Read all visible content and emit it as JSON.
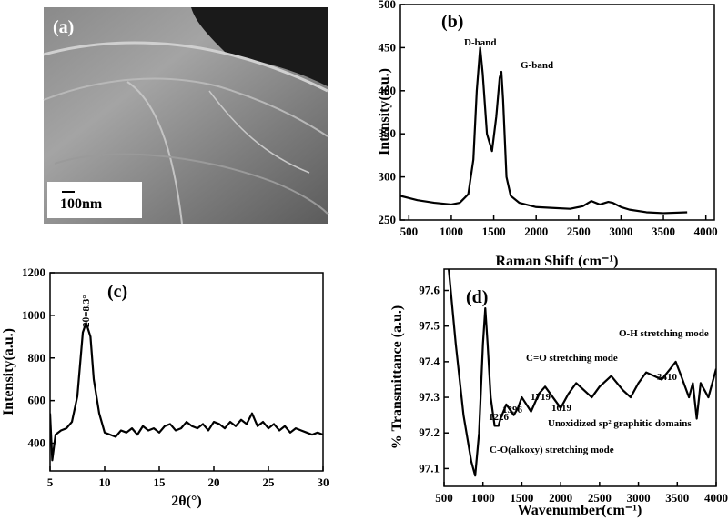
{
  "image_panel": {
    "label": "(a)",
    "scale_bar": "100nm"
  },
  "chart_data": [
    {
      "type": "line",
      "panel_label": "(b)",
      "x_label": "Raman Shift (cm⁻¹)",
      "y_label": "Intensity(a.u.)",
      "color": "#000000",
      "xlim": [
        400,
        4100
      ],
      "ylim": [
        250,
        500
      ],
      "xticks": [
        500,
        1000,
        1500,
        2000,
        2500,
        3000,
        3500,
        4000
      ],
      "yticks": [
        250,
        300,
        350,
        400,
        450,
        500
      ],
      "x": [
        400,
        600,
        800,
        1000,
        1100,
        1200,
        1260,
        1300,
        1340,
        1370,
        1420,
        1480,
        1530,
        1570,
        1590,
        1610,
        1650,
        1700,
        1800,
        2000,
        2200,
        2400,
        2550,
        2650,
        2750,
        2850,
        2900,
        3000,
        3100,
        3300,
        3500,
        3780
      ],
      "values": [
        278,
        273,
        270,
        268,
        270,
        280,
        320,
        400,
        450,
        420,
        350,
        330,
        370,
        415,
        422,
        390,
        300,
        278,
        270,
        265,
        264,
        263,
        266,
        272,
        268,
        271,
        270,
        265,
        262,
        259,
        258,
        259
      ],
      "annotations": [
        "D-band",
        "G-band"
      ]
    },
    {
      "type": "line",
      "panel_label": "(c)",
      "x_label": "2θ(°)",
      "y_label": "Intensity(a.u.)",
      "color": "#000000",
      "xlim": [
        5,
        30
      ],
      "ylim": [
        270,
        1200
      ],
      "xticks": [
        5,
        10,
        15,
        20,
        25,
        30
      ],
      "yticks": [
        400,
        600,
        800,
        1000,
        1200
      ],
      "x": [
        5,
        5.2,
        5.5,
        6,
        6.5,
        7,
        7.5,
        8,
        8.3,
        8.7,
        9,
        9.5,
        10,
        10.5,
        11,
        11.5,
        12,
        12.5,
        13,
        13.5,
        14,
        14.5,
        15,
        15.5,
        16,
        16.5,
        17,
        17.5,
        18,
        18.5,
        19,
        19.5,
        20,
        20.5,
        21,
        21.5,
        22,
        22.5,
        23,
        23.5,
        24,
        24.5,
        25,
        25.5,
        26,
        26.5,
        27,
        27.5,
        28,
        28.5,
        29,
        29.5,
        30
      ],
      "values": [
        540,
        320,
        440,
        460,
        470,
        500,
        620,
        920,
        965,
        900,
        700,
        540,
        450,
        440,
        430,
        460,
        450,
        470,
        440,
        480,
        460,
        470,
        450,
        480,
        490,
        460,
        470,
        500,
        480,
        470,
        490,
        460,
        500,
        490,
        470,
        500,
        480,
        510,
        490,
        540,
        480,
        500,
        470,
        490,
        460,
        480,
        450,
        470,
        460,
        450,
        440,
        450,
        440
      ],
      "annotations": [
        "2θ=8.3°"
      ]
    },
    {
      "type": "line",
      "panel_label": "(d)",
      "x_label": "Wavenumber(cm⁻¹)",
      "y_label": "% Transmittance (a.u.)",
      "color": "#000000",
      "xlim": [
        500,
        4000
      ],
      "ylim": [
        97.05,
        97.66
      ],
      "xticks": [
        500,
        1000,
        1500,
        2000,
        2500,
        3000,
        3500,
        4000
      ],
      "yticks": [
        97.1,
        97.2,
        97.3,
        97.4,
        97.5,
        97.6
      ],
      "x": [
        560,
        650,
        750,
        850,
        900,
        950,
        1000,
        1030,
        1060,
        1100,
        1150,
        1200,
        1226,
        1300,
        1396,
        1450,
        1500,
        1619,
        1719,
        1800,
        1900,
        2000,
        2100,
        2200,
        2300,
        2400,
        2500,
        2650,
        2800,
        2900,
        3000,
        3100,
        3200,
        3300,
        3410,
        3480,
        3550,
        3650,
        3700,
        3750,
        3800,
        3850,
        3900,
        4000
      ],
      "values": [
        97.66,
        97.45,
        97.25,
        97.12,
        97.08,
        97.2,
        97.45,
        97.55,
        97.45,
        97.3,
        97.22,
        97.22,
        97.24,
        97.28,
        97.25,
        97.27,
        97.3,
        97.26,
        97.31,
        97.33,
        97.3,
        97.27,
        97.31,
        97.34,
        97.32,
        97.3,
        97.33,
        97.36,
        97.32,
        97.3,
        97.34,
        97.37,
        97.36,
        97.35,
        97.38,
        97.4,
        97.36,
        97.3,
        97.34,
        97.24,
        97.34,
        97.32,
        97.3,
        97.38
      ],
      "annotations": [
        "O-H stretching mode",
        "3410",
        "C=O stretching mode",
        "1719",
        "1619",
        "1396",
        "1226",
        "Unoxidized sp² graphitic domains",
        "C-O(alkoxy) stretching mode"
      ]
    }
  ]
}
